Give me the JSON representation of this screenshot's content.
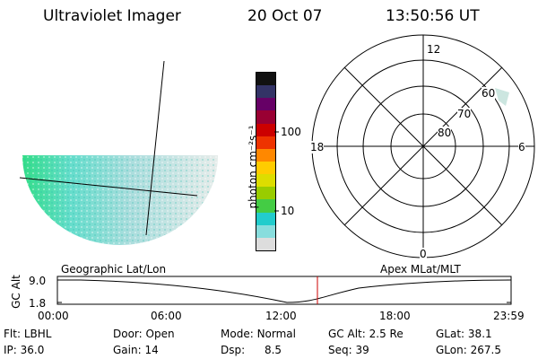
{
  "header": {
    "instrument": "Ultraviolet Imager",
    "date": "20 Oct 07",
    "time": "13:50:56 UT"
  },
  "colorbar": {
    "unit_label": "photon cm⁻²s⁻¹",
    "ticks": [
      "100",
      "10"
    ],
    "colors": [
      "#111111",
      "#333366",
      "#660066",
      "#990033",
      "#cc0000",
      "#ee3300",
      "#ff8800",
      "#ffcc00",
      "#dddd00",
      "#99cc00",
      "#44cc44",
      "#22cccc",
      "#88dddd",
      "#dddddd"
    ]
  },
  "polar_plot": {
    "mlt_labels": {
      "top": "12",
      "left": "18",
      "right": "6",
      "bottom": "0"
    },
    "lat_labels": [
      "60",
      "70",
      "80"
    ]
  },
  "timeline": {
    "ylabel": "GC Alt",
    "yticks": [
      "9.0",
      "1.8"
    ],
    "left_title": "Geographic Lat/Lon",
    "right_title": "Apex MLat/MLT",
    "xticks": [
      "00:00",
      "06:00",
      "12:00",
      "18:00",
      "23:59"
    ],
    "current_marker_color": "#cc0000"
  },
  "info": {
    "row1": [
      {
        "label": "Flt:",
        "value": "LBHL"
      },
      {
        "label": "Door:",
        "value": "Open"
      },
      {
        "label": "Mode:",
        "value": "Normal"
      },
      {
        "label": "GC Alt:",
        "value": "2.5 Re"
      },
      {
        "label": "GLat:",
        "value": "38.1"
      }
    ],
    "row2": [
      {
        "label": "IP:",
        "value": "36.0"
      },
      {
        "label": "Gain:",
        "value": "14"
      },
      {
        "label": "Dsp:",
        "value": "8.5"
      },
      {
        "label": "Seq:",
        "value": "39"
      },
      {
        "label": "GLon:",
        "value": "267.5"
      }
    ]
  }
}
